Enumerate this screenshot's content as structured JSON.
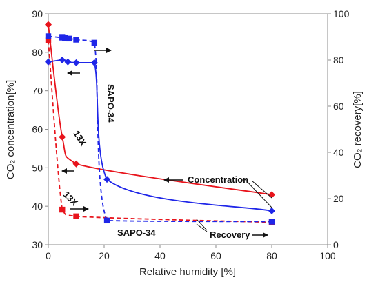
{
  "chart_data": {
    "type": "line",
    "xlabel": "Relative humidity   [%]",
    "ylabel_left": "CO₂ concentration[%]",
    "ylabel_right": "CO₂ recovery[%]",
    "xlim": [
      0,
      100
    ],
    "ylim_left": [
      30,
      90
    ],
    "ylim_right": [
      0,
      100
    ],
    "xticks": [
      0,
      20,
      40,
      60,
      80,
      100
    ],
    "yticks_left": [
      30,
      40,
      50,
      60,
      70,
      80,
      90
    ],
    "yticks_right": [
      0,
      20,
      40,
      60,
      80,
      100
    ],
    "grid": false,
    "colors": {
      "13X": "#e8141c",
      "SAPO-34": "#1f26e8"
    },
    "series": [
      {
        "material": "13X",
        "measure": "concentration",
        "axis": "left",
        "line": "solid",
        "marker": "diamond",
        "x": [
          0,
          5,
          10,
          80
        ],
        "y": [
          87.2,
          58,
          51,
          43
        ]
      },
      {
        "material": "13X",
        "measure": "recovery",
        "axis": "right",
        "line": "dashed",
        "marker": "square",
        "x": [
          0,
          5,
          10,
          80
        ],
        "y": [
          88.5,
          15.2,
          12.3,
          9.7
        ]
      },
      {
        "material": "SAPO-34",
        "measure": "concentration",
        "axis": "left",
        "line": "solid",
        "marker": "diamond",
        "x": [
          0,
          5,
          7,
          10,
          16.5,
          21,
          80
        ],
        "y": [
          77.5,
          78,
          77.5,
          77.3,
          77.3,
          47,
          38.8
        ]
      },
      {
        "material": "SAPO-34",
        "measure": "recovery",
        "axis": "right",
        "line": "dashed",
        "marker": "square",
        "x": [
          0,
          5,
          6,
          7.5,
          10,
          16.5,
          21,
          80
        ],
        "y": [
          90.3,
          89.7,
          89.5,
          89.3,
          88.8,
          87.5,
          10.5,
          10
        ]
      }
    ],
    "annotations": {
      "label_13x": "13X",
      "label_sapo34": "SAPO-34",
      "label_concentration": "Concentration",
      "label_recovery": "Recovery"
    }
  }
}
